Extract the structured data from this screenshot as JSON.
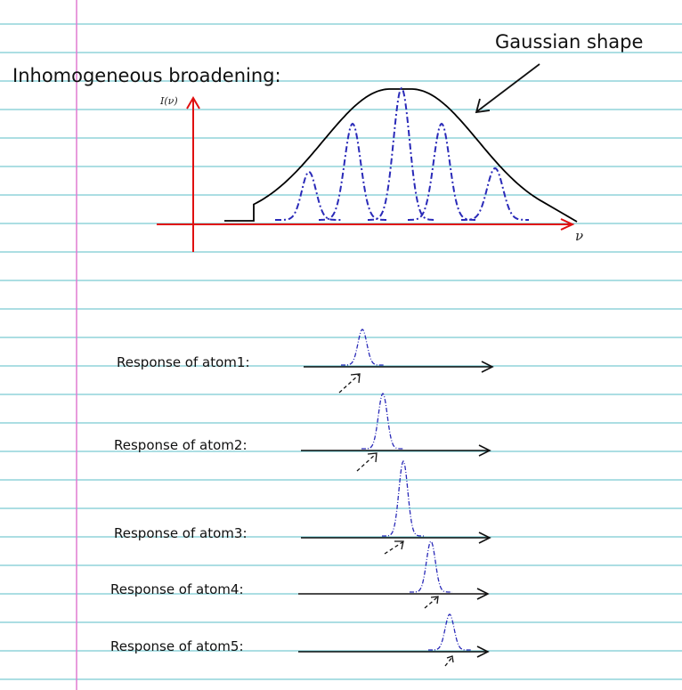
{
  "title": "Inhomogeneous broadening:",
  "gaussian_label": "Gaussian shape",
  "axis": {
    "ylabel": "I(ν)",
    "xlabel": "ν"
  },
  "responses": [
    {
      "label": "Response of atom1:"
    },
    {
      "label": "Response of atom2:"
    },
    {
      "label": "Response of atom3:"
    },
    {
      "label": "Response of atom4:"
    },
    {
      "label": "Response of atom5:"
    }
  ],
  "colors": {
    "ruled_line": "#59bcc7",
    "margin_line": "#e07bd1",
    "axis": "#e01010",
    "envelope": "#000000",
    "peaks": "#2a2ab8"
  }
}
